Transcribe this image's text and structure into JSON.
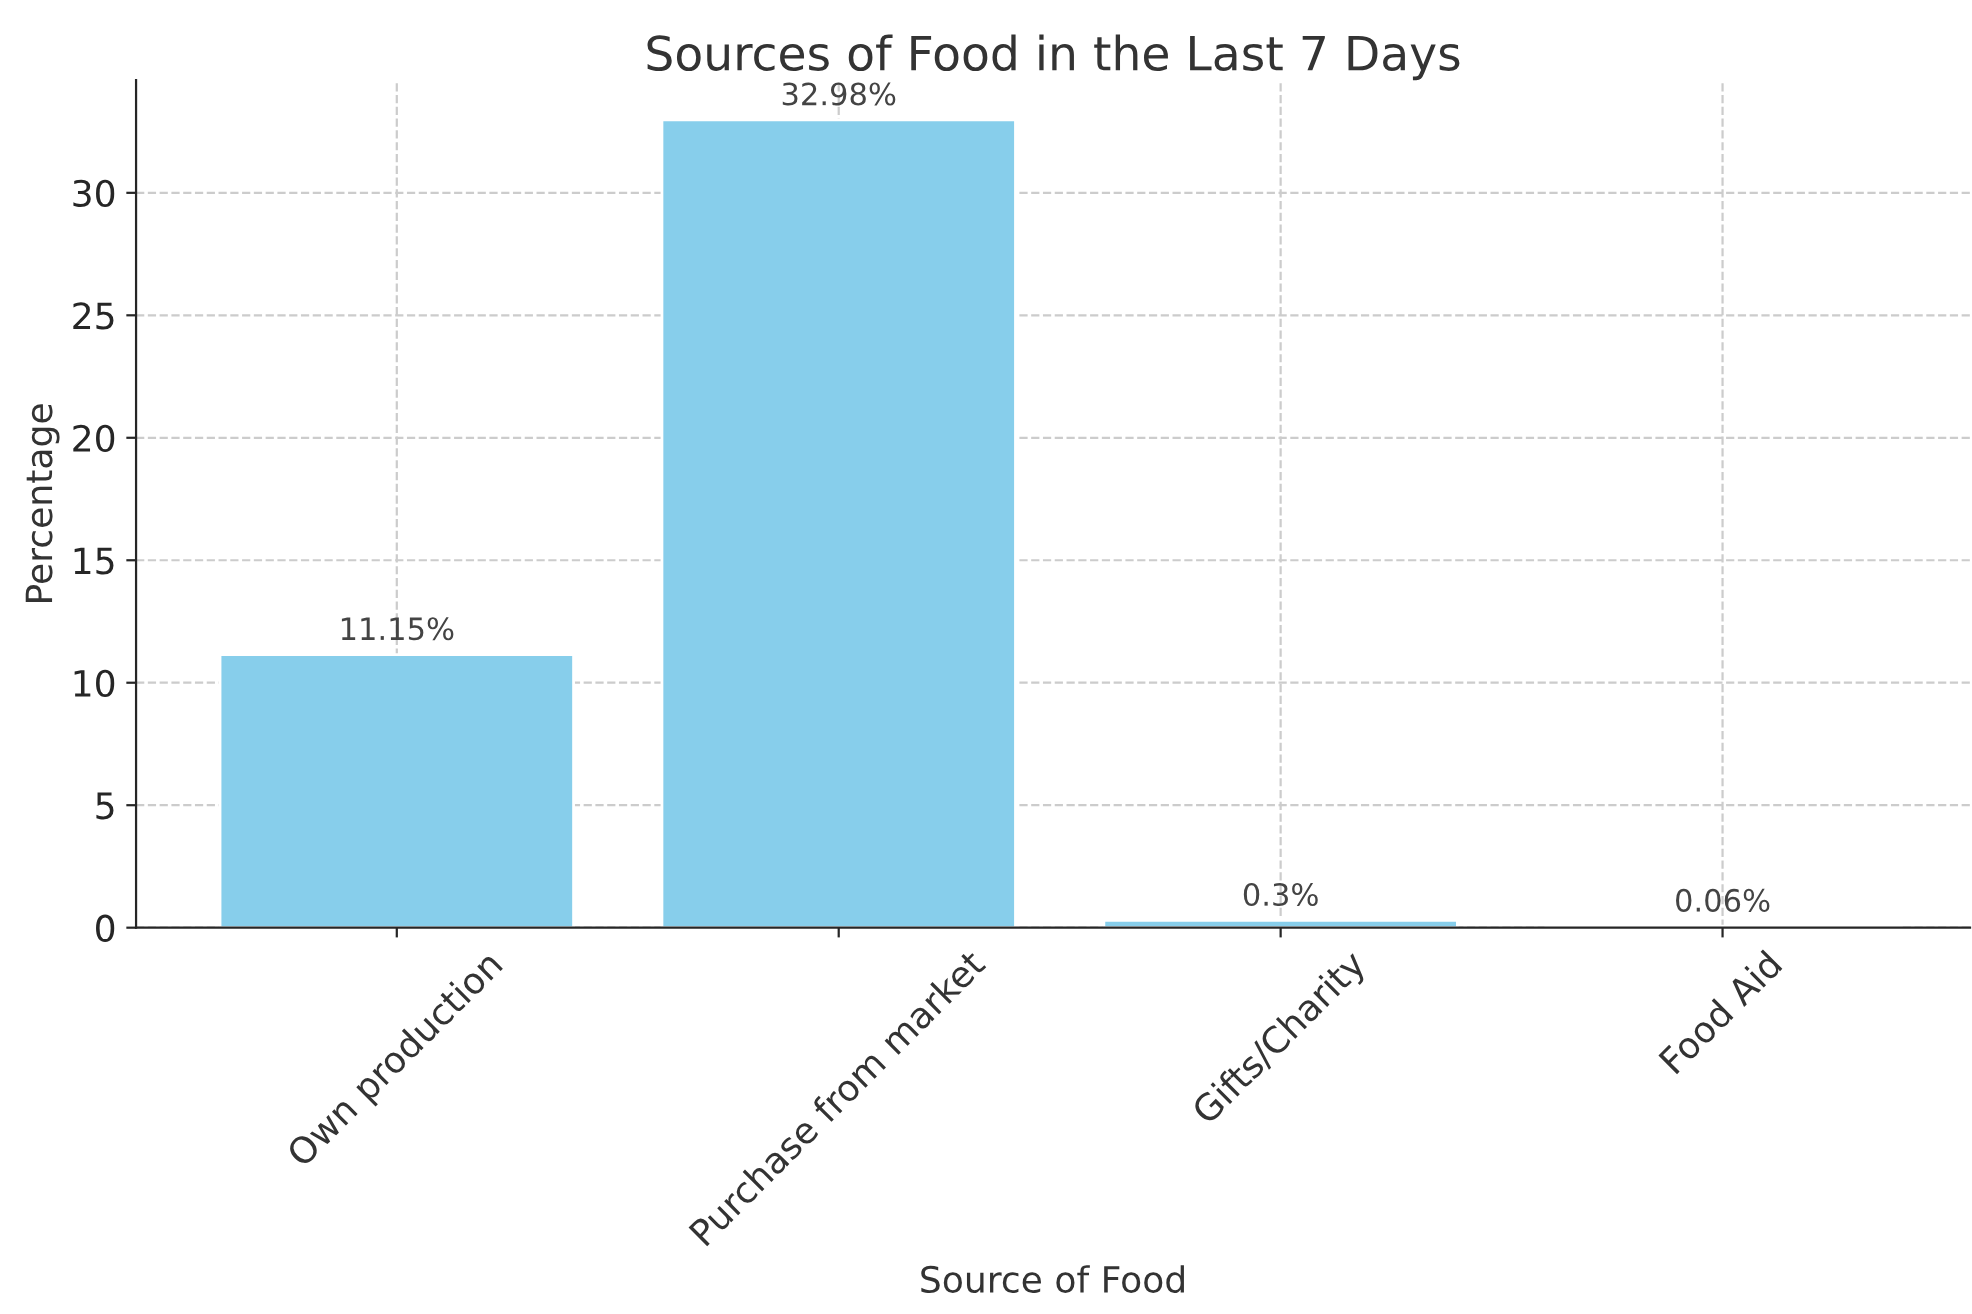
{
  "chart_data": {
    "type": "bar",
    "title": "Sources of Food in the Last 7 Days",
    "xlabel": "Source of Food",
    "ylabel": "Percentage",
    "categories": [
      "Own production",
      "Purchase from market",
      "Gifts/Charity",
      "Food Aid"
    ],
    "values": [
      11.15,
      32.98,
      0.3,
      0.06
    ],
    "color": "#87ceeb",
    "value_labels": [
      "11.15%",
      "32.98%",
      "0.3%",
      "0.06%"
    ],
    "ylim": [
      0,
      34.6
    ],
    "yticks": [
      0,
      5,
      10,
      15,
      20,
      25,
      30
    ],
    "grid": true
  }
}
